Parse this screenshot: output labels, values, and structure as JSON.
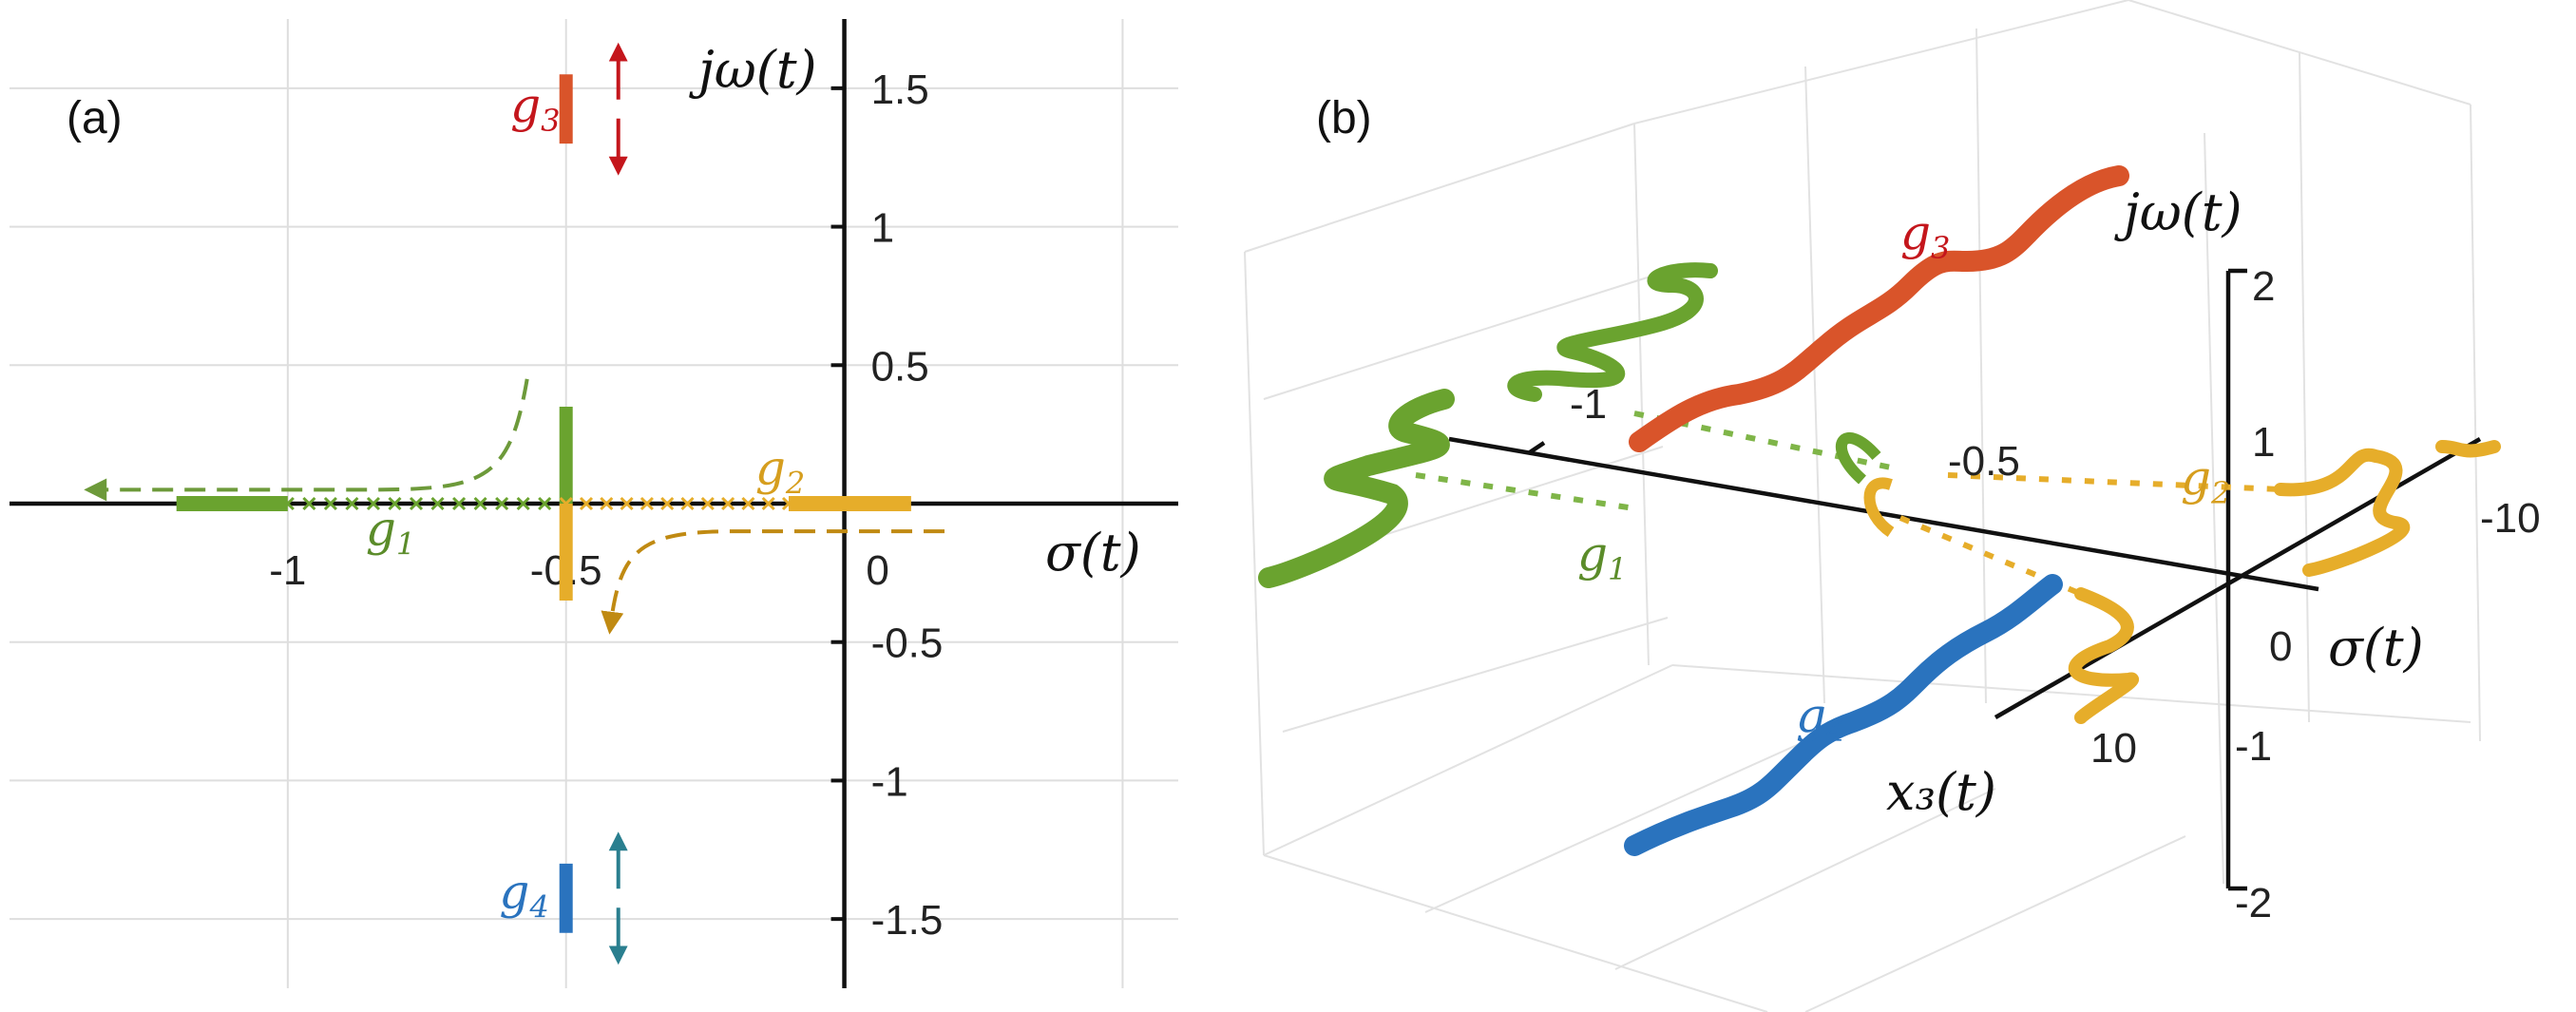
{
  "chart_data": [
    {
      "type": "scatter",
      "panel_label": "(a)",
      "xlabel": "σ(t)",
      "ylabel": "jω(t)",
      "xlim": [
        -1.5,
        0.6
      ],
      "ylim": [
        -1.75,
        1.75
      ],
      "x_ticks": [
        "-1",
        "-0.5",
        "0"
      ],
      "x_tick_values": [
        -1,
        -0.5,
        0
      ],
      "y_ticks": [
        "1.5",
        "1",
        "0.5",
        "-0.5",
        "-1",
        "-1.5"
      ],
      "y_tick_values": [
        1.5,
        1,
        0.5,
        -0.5,
        -1,
        -1.5
      ],
      "grid": true,
      "series": [
        {
          "name": "g1",
          "label": "g",
          "sub": "1",
          "color": "#6aa32f",
          "segments": [
            {
              "x": [
                -1.2,
                -1.0
              ],
              "y": [
                0,
                0
              ],
              "dense": true
            },
            {
              "x": [
                -1.0,
                -0.5
              ],
              "y": [
                0,
                0
              ],
              "dense": false
            },
            {
              "x": [
                -0.5,
                -0.5
              ],
              "y": [
                0,
                0.35
              ],
              "dense": true
            }
          ],
          "arrow": {
            "x": [
              -0.57,
              -0.9,
              -1.35
            ],
            "y": [
              0.45,
              0.05,
              0.05
            ]
          }
        },
        {
          "name": "g2",
          "label": "g",
          "sub": "2",
          "color": "#e6ad2a",
          "segments": [
            {
              "x": [
                -0.5,
                -0.5
              ],
              "y": [
                0,
                -0.35
              ],
              "dense": true
            },
            {
              "x": [
                -0.5,
                -0.1
              ],
              "y": [
                0,
                0
              ],
              "dense": false
            },
            {
              "x": [
                -0.1,
                0.12
              ],
              "y": [
                0,
                0
              ],
              "dense": true
            }
          ],
          "arrow": {
            "x": [
              0.18,
              -0.2,
              -0.42
            ],
            "y": [
              -0.1,
              -0.1,
              -0.44
            ]
          }
        },
        {
          "name": "g3",
          "label": "g",
          "sub": "3",
          "color": "#d9542a",
          "segments": [
            {
              "x": [
                -0.5,
                -0.5
              ],
              "y": [
                1.3,
                1.55
              ],
              "dense": true
            }
          ],
          "arrow_color": "#c4161c"
        },
        {
          "name": "g4",
          "label": "g",
          "sub": "4",
          "color": "#2a73be",
          "segments": [
            {
              "x": [
                -0.5,
                -0.5
              ],
              "y": [
                -1.3,
                -1.55
              ],
              "dense": true
            }
          ],
          "arrow_color": "#2a7f8f"
        }
      ]
    },
    {
      "type": "scatter3d",
      "panel_label": "(b)",
      "xlabel": "σ(t)",
      "ylabel": "x₃(t)",
      "zlabel": "jω(t)",
      "sigma_ticks": [
        "-1",
        "-0.5",
        "0"
      ],
      "sigma_tick_values": [
        -1,
        -0.5,
        0
      ],
      "x3_ticks": [
        "-10",
        "10"
      ],
      "x3_tick_values": [
        -10,
        10
      ],
      "z_ticks": [
        "2",
        "1",
        "-1",
        "-2"
      ],
      "z_tick_values": [
        2,
        1,
        -1,
        -2
      ],
      "grid": true,
      "series": [
        {
          "name": "g1",
          "label": "g",
          "sub": "1",
          "color": "#6aa32f"
        },
        {
          "name": "g2",
          "label": "g",
          "sub": "2",
          "color": "#e6ad2a"
        },
        {
          "name": "g3",
          "label": "g",
          "sub": "3",
          "color": "#d9542a"
        },
        {
          "name": "g4",
          "label": "g",
          "sub": "4",
          "color": "#2a73be"
        }
      ]
    }
  ]
}
